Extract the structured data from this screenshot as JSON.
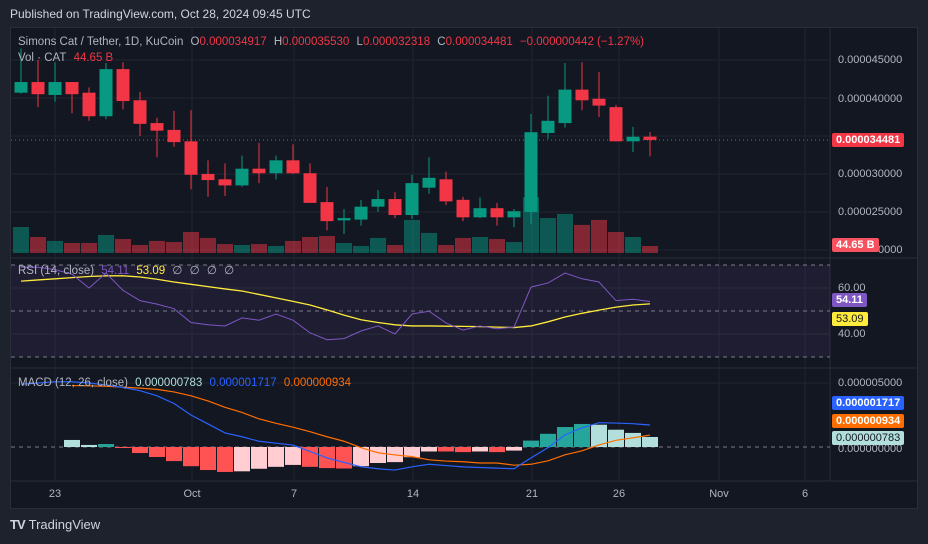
{
  "published": "Published on TradingView.com, Oct 28, 2024 09:45 UTC",
  "header": {
    "symbol": "Simons Cat / Tether, 1D, KuCoin",
    "o_label": "O",
    "o": "0.000034917",
    "h_label": "H",
    "h": "0.000035530",
    "l_label": "L",
    "l": "0.000032318",
    "c_label": "C",
    "c": "0.000034481",
    "change": "−0.000000442 (−1.27%)",
    "vol_label": "Vol · CAT",
    "vol": "44.65 B"
  },
  "rsi_legend": {
    "label": "RSI (14, close)",
    "rsi": "54.11",
    "ma": "53.09",
    "extra": [
      "∅",
      "∅",
      "∅",
      "∅"
    ]
  },
  "macd_legend": {
    "label": "MACD (12, 26, close)",
    "hist": "0.000000783",
    "macd": "0.000001717",
    "signal": "0.000000934"
  },
  "price_axis": [
    "0.000045000",
    "0.000040000",
    "0.000030000",
    "0.000025000",
    "0000"
  ],
  "price_axis_values": [
    4.5e-05,
    4e-05,
    3e-05,
    2.5e-05,
    2e-05
  ],
  "price_tag": "0.000034481",
  "volume_tag": "44.65 B",
  "rsi_axis": [
    "60.00",
    "40.00"
  ],
  "rsi_axis_values": [
    60,
    40
  ],
  "rsi_tags": {
    "rsi": "54.11",
    "ma": "53.09"
  },
  "macd_axis": [
    "0.000005000",
    "0.000000000"
  ],
  "macd_axis_values": [
    5e-06,
    0
  ],
  "macd_tags": {
    "macd": "0.000001717",
    "signal": "0.000000934",
    "hist": "0.000000783"
  },
  "time_axis": [
    {
      "label": "23",
      "date": "2024-09-23"
    },
    {
      "label": "Oct",
      "date": "2024-10-01"
    },
    {
      "label": "7",
      "date": "2024-10-07"
    },
    {
      "label": "14",
      "date": "2024-10-14"
    },
    {
      "label": "21",
      "date": "2024-10-21"
    },
    {
      "label": "26",
      "date": "2024-10-26"
    },
    {
      "label": "Nov",
      "date": "2024-11-01"
    },
    {
      "label": "6",
      "date": "2024-11-06"
    }
  ],
  "brand": "TradingView",
  "colors": {
    "up": "#089981",
    "down": "#f23645",
    "rsi": "#7e57c2",
    "rsi_ma": "#ffeb3b",
    "macd": "#2962ff",
    "signal": "#ff6d00",
    "hist_up_strong": "#26a69a",
    "hist_up_weak": "#b2dfdb",
    "hist_dn_strong": "#ff5252",
    "hist_dn_weak": "#ffcdd2"
  },
  "chart_data": {
    "type": "candlestick",
    "start_date": "2024-09-21",
    "dates_note_free": true,
    "ohlc": [
      [
        4.07e-05,
        4.65e-05,
        4.06e-05,
        4.21e-05
      ],
      [
        4.21e-05,
        4.5e-05,
        3.88e-05,
        4.05e-05
      ],
      [
        4.04e-05,
        4.47e-05,
        3.95e-05,
        4.21e-05
      ],
      [
        4.21e-05,
        4.21e-05,
        3.8e-05,
        4.05e-05
      ],
      [
        4.07e-05,
        4.14e-05,
        3.7e-05,
        3.76e-05
      ],
      [
        3.76e-05,
        4.46e-05,
        3.72e-05,
        4.38e-05
      ],
      [
        4.38e-05,
        4.47e-05,
        3.85e-05,
        3.96e-05
      ],
      [
        3.97e-05,
        4.08e-05,
        3.5e-05,
        3.66e-05
      ],
      [
        3.67e-05,
        3.74e-05,
        3.22e-05,
        3.57e-05
      ],
      [
        3.58e-05,
        3.83e-05,
        3.36e-05,
        3.42e-05
      ],
      [
        3.43e-05,
        3.84e-05,
        2.8e-05,
        2.99e-05
      ],
      [
        3e-05,
        3.18e-05,
        2.7e-05,
        2.92e-05
      ],
      [
        2.93e-05,
        3.14e-05,
        2.71e-05,
        2.85e-05
      ],
      [
        2.85e-05,
        3.24e-05,
        2.83e-05,
        3.07e-05
      ],
      [
        3.07e-05,
        3.41e-05,
        2.88e-05,
        3.01e-05
      ],
      [
        3.01e-05,
        3.24e-05,
        2.93e-05,
        3.18e-05
      ],
      [
        3.18e-05,
        3.39e-05,
        3e-05,
        3.01e-05
      ],
      [
        3.01e-05,
        3.14e-05,
        2.62e-05,
        2.62e-05
      ],
      [
        2.63e-05,
        2.83e-05,
        2.26e-05,
        2.38e-05
      ],
      [
        2.39e-05,
        2.54e-05,
        2.21e-05,
        2.42e-05
      ],
      [
        2.4e-05,
        2.66e-05,
        2.32e-05,
        2.57e-05
      ],
      [
        2.57e-05,
        2.79e-05,
        2.5e-05,
        2.67e-05
      ],
      [
        2.67e-05,
        2.76e-05,
        2.42e-05,
        2.46e-05
      ],
      [
        2.46e-05,
        2.99e-05,
        2.41e-05,
        2.88e-05
      ],
      [
        2.82e-05,
        3.22e-05,
        2.74e-05,
        2.95e-05
      ],
      [
        2.93e-05,
        3.03e-05,
        2.59e-05,
        2.64e-05
      ],
      [
        2.66e-05,
        2.7e-05,
        2.38e-05,
        2.43e-05
      ],
      [
        2.43e-05,
        2.69e-05,
        2.42e-05,
        2.55e-05
      ],
      [
        2.55e-05,
        2.62e-05,
        2.32e-05,
        2.43e-05
      ],
      [
        2.43e-05,
        2.54e-05,
        2.3e-05,
        2.51e-05
      ],
      [
        2.5e-05,
        3.79e-05,
        2.34e-05,
        3.55e-05
      ],
      [
        3.54e-05,
        4.03e-05,
        3.46e-05,
        3.7e-05
      ],
      [
        3.67e-05,
        4.46e-05,
        3.61e-05,
        4.11e-05
      ],
      [
        4.11e-05,
        4.47e-05,
        3.84e-05,
        3.97e-05
      ],
      [
        3.99e-05,
        4.34e-05,
        3.75e-05,
        3.9e-05
      ],
      [
        3.88e-05,
        3.91e-05,
        3.43e-05,
        3.43e-05
      ],
      [
        3.43e-05,
        3.62e-05,
        3.29e-05,
        3.49e-05
      ],
      [
        3.4917e-05,
        3.553e-05,
        3.2318e-05,
        3.4481e-05
      ]
    ],
    "volume_billions": [
      166,
      102,
      77,
      64,
      64,
      115,
      89,
      51,
      77,
      70,
      134,
      96,
      57,
      51,
      57,
      45,
      77,
      102,
      108,
      64,
      45,
      96,
      51,
      211,
      128,
      51,
      96,
      102,
      89,
      70,
      357,
      223,
      249,
      179,
      211,
      134,
      102,
      44.65
    ],
    "rsi": [
      69,
      69,
      68,
      66,
      60,
      66.5,
      59,
      54.5,
      53,
      51,
      45,
      44,
      43.5,
      47,
      46,
      48.7,
      46,
      40.5,
      37.5,
      38,
      41.3,
      43.5,
      40,
      48.7,
      49.9,
      44.8,
      41.7,
      43.5,
      42.3,
      43,
      60.4,
      62.2,
      66.5,
      64,
      62.6,
      54.5,
      55.1,
      54.11
    ],
    "rsi_ma": [
      63,
      63.5,
      64,
      64.5,
      65,
      65.3,
      65.3,
      64.8,
      63.8,
      62.6,
      61.6,
      60.6,
      59.6,
      58.7,
      57.2,
      55.7,
      54.2,
      52.6,
      50.5,
      48.2,
      46.2,
      45,
      44,
      43.5,
      43.5,
      43.4,
      43.3,
      43.2,
      43,
      42.8,
      43.5,
      45.3,
      47.4,
      49,
      50.4,
      51.7,
      52.6,
      53.09
    ],
    "rsi_bands": [
      70,
      50,
      30
    ],
    "macd": [
      4.9e-06,
      5e-06,
      5.1e-06,
      5.1e-06,
      5e-06,
      4.85e-06,
      4.65e-06,
      4.4e-06,
      4e-06,
      3.4e-06,
      2.5e-06,
      1.8e-06,
      1.1e-06,
      8e-07,
      4.5e-07,
      3e-07,
      1.5e-07,
      -3.5e-07,
      -8.5e-07,
      -1.2e-06,
      -1.55e-06,
      -1.7e-06,
      -1.8e-06,
      -1.55e-06,
      -1.35e-06,
      -1.45e-06,
      -1.55e-06,
      -1.6e-06,
      -1.65e-06,
      -1.7e-06,
      -8.5e-07,
      -5e-08,
      9.5e-07,
      1.5e-06,
      1.9e-06,
      1.87e-06,
      1.82e-06,
      1.717e-06
    ],
    "signal": [
      null,
      null,
      null,
      4.8e-06,
      4.78e-06,
      4.74e-06,
      4.68e-06,
      4.6e-06,
      4.5e-06,
      4.3e-06,
      4e-06,
      3.6e-06,
      3.1e-06,
      2.7e-06,
      2.2e-06,
      1.85e-06,
      1.55e-06,
      1.2e-06,
      8e-07,
      4.5e-07,
      -5e-08,
      -4.5e-07,
      -6.2e-07,
      -7.5e-07,
      -1e-06,
      -1.1e-06,
      -1.15e-06,
      -1.25e-06,
      -1.25e-06,
      -1.42e-06,
      -1.35e-06,
      -1.08e-06,
      -6.1e-07,
      -3e-07,
      1.6e-07,
      5.2e-07,
      7.2e-07,
      9.34e-07
    ],
    "histogram": [
      null,
      null,
      null,
      5.5e-07,
      1.6e-07,
      2.3e-07,
      -2e-08,
      -4.7e-07,
      -7.8e-07,
      -1.1e-06,
      -1.5e-06,
      -1.8e-06,
      -1.95e-06,
      -1.9e-06,
      -1.7e-06,
      -1.55e-06,
      -1.4e-06,
      -1.55e-06,
      -1.65e-06,
      -1.68e-06,
      -1.5e-06,
      -1.25e-06,
      -1.18e-06,
      -8e-07,
      -3.5e-07,
      -3.5e-07,
      -4e-07,
      -3.5e-07,
      -4e-07,
      -2.8e-07,
      5e-07,
      1.03e-06,
      1.56e-06,
      1.8e-06,
      1.74e-06,
      1.35e-06,
      1.1e-06,
      7.83e-07
    ],
    "last_price": 3.4481e-05
  }
}
